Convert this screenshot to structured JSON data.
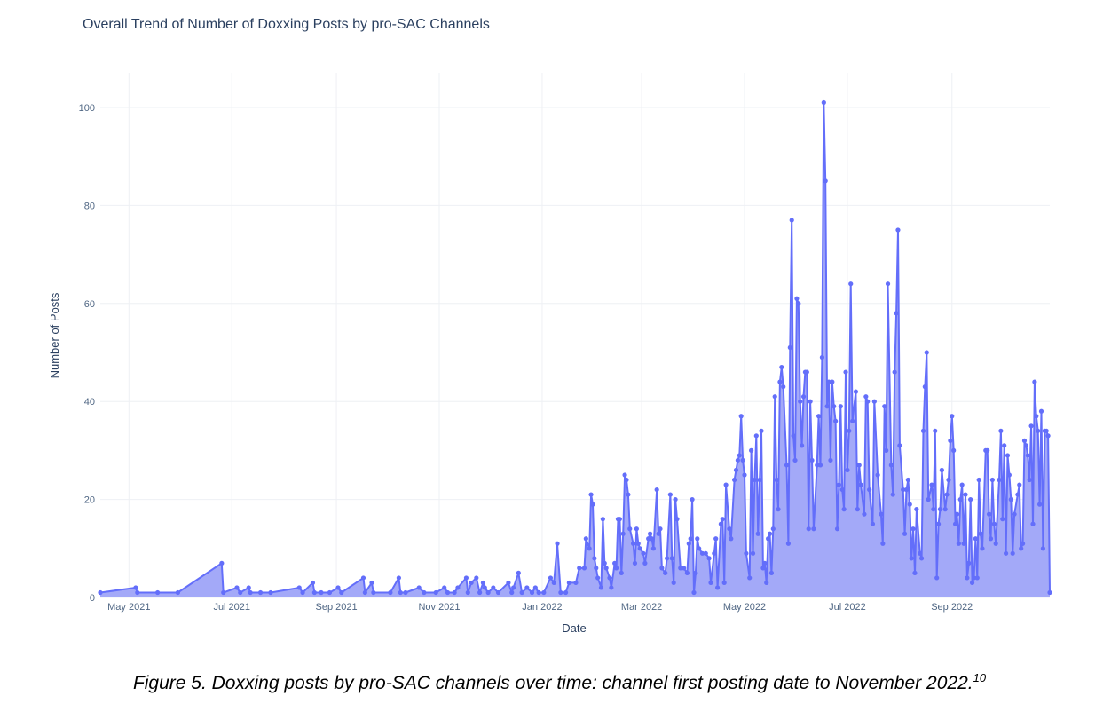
{
  "chart_data": {
    "type": "area",
    "title": "Overall Trend of Number of Doxxing Posts by pro-SAC Channels",
    "xlabel": "Date",
    "ylabel": "Number of Posts",
    "xlim": [
      "2021-04-14",
      "2022-10-29"
    ],
    "ylim": [
      0,
      105
    ],
    "y_ticks": [
      "0",
      "20",
      "40",
      "60",
      "80",
      "100"
    ],
    "x_ticks": [
      {
        "date": "2021-05-01",
        "label": "May 2021"
      },
      {
        "date": "2021-07-01",
        "label": "Jul 2021"
      },
      {
        "date": "2021-09-01",
        "label": "Sep 2021"
      },
      {
        "date": "2021-11-01",
        "label": "Nov 2021"
      },
      {
        "date": "2022-01-01",
        "label": "Jan 2022"
      },
      {
        "date": "2022-03-01",
        "label": "Mar 2022"
      },
      {
        "date": "2022-05-01",
        "label": "May 2022"
      },
      {
        "date": "2022-07-01",
        "label": "Jul 2022"
      },
      {
        "date": "2022-09-01",
        "label": "Sep 2022"
      }
    ],
    "grid": true,
    "markers": true,
    "color": "#636efa",
    "fill_color": "#a3a9f8",
    "points": [
      [
        "2021-04-14",
        1
      ],
      [
        "2021-05-05",
        2
      ],
      [
        "2021-05-06",
        1
      ],
      [
        "2021-05-18",
        1
      ],
      [
        "2021-05-30",
        1
      ],
      [
        "2021-06-25",
        7
      ],
      [
        "2021-06-26",
        1
      ],
      [
        "2021-07-04",
        2
      ],
      [
        "2021-07-06",
        1
      ],
      [
        "2021-07-11",
        2
      ],
      [
        "2021-07-12",
        1
      ],
      [
        "2021-07-18",
        1
      ],
      [
        "2021-07-24",
        1
      ],
      [
        "2021-08-10",
        2
      ],
      [
        "2021-08-12",
        1
      ],
      [
        "2021-08-18",
        3
      ],
      [
        "2021-08-19",
        1
      ],
      [
        "2021-08-23",
        1
      ],
      [
        "2021-08-28",
        1
      ],
      [
        "2021-09-02",
        2
      ],
      [
        "2021-09-04",
        1
      ],
      [
        "2021-09-17",
        4
      ],
      [
        "2021-09-18",
        1
      ],
      [
        "2021-09-22",
        3
      ],
      [
        "2021-09-23",
        1
      ],
      [
        "2021-10-03",
        1
      ],
      [
        "2021-10-08",
        4
      ],
      [
        "2021-10-09",
        1
      ],
      [
        "2021-10-12",
        1
      ],
      [
        "2021-10-20",
        2
      ],
      [
        "2021-10-23",
        1
      ],
      [
        "2021-10-30",
        1
      ],
      [
        "2021-11-04",
        2
      ],
      [
        "2021-11-06",
        1
      ],
      [
        "2021-11-10",
        1
      ],
      [
        "2021-11-12",
        2
      ],
      [
        "2021-11-17",
        4
      ],
      [
        "2021-11-18",
        1
      ],
      [
        "2021-11-20",
        3
      ],
      [
        "2021-11-23",
        4
      ],
      [
        "2021-11-25",
        1
      ],
      [
        "2021-11-27",
        3
      ],
      [
        "2021-11-28",
        2
      ],
      [
        "2021-11-30",
        1
      ],
      [
        "2021-12-03",
        2
      ],
      [
        "2021-12-06",
        1
      ],
      [
        "2021-12-12",
        3
      ],
      [
        "2021-12-14",
        1
      ],
      [
        "2021-12-15",
        2
      ],
      [
        "2021-12-18",
        5
      ],
      [
        "2021-12-20",
        1
      ],
      [
        "2021-12-23",
        2
      ],
      [
        "2021-12-26",
        1
      ],
      [
        "2021-12-28",
        2
      ],
      [
        "2021-12-30",
        1
      ],
      [
        "2022-01-02",
        1
      ],
      [
        "2022-01-06",
        4
      ],
      [
        "2022-01-08",
        3
      ],
      [
        "2022-01-10",
        11
      ],
      [
        "2022-01-12",
        1
      ],
      [
        "2022-01-15",
        1
      ],
      [
        "2022-01-17",
        3
      ],
      [
        "2022-01-21",
        3
      ],
      [
        "2022-01-23",
        6
      ],
      [
        "2022-01-26",
        6
      ],
      [
        "2022-01-27",
        12
      ],
      [
        "2022-01-29",
        10
      ],
      [
        "2022-01-30",
        21
      ],
      [
        "2022-01-31",
        19
      ],
      [
        "2022-02-01",
        8
      ],
      [
        "2022-02-02",
        6
      ],
      [
        "2022-02-03",
        4
      ],
      [
        "2022-02-05",
        2
      ],
      [
        "2022-02-06",
        16
      ],
      [
        "2022-02-07",
        7
      ],
      [
        "2022-02-08",
        6
      ],
      [
        "2022-02-10",
        4
      ],
      [
        "2022-02-11",
        2
      ],
      [
        "2022-02-13",
        7
      ],
      [
        "2022-02-14",
        6
      ],
      [
        "2022-02-15",
        16
      ],
      [
        "2022-02-16",
        16
      ],
      [
        "2022-02-17",
        5
      ],
      [
        "2022-02-18",
        13
      ],
      [
        "2022-02-19",
        25
      ],
      [
        "2022-02-20",
        24
      ],
      [
        "2022-02-21",
        21
      ],
      [
        "2022-02-22",
        14
      ],
      [
        "2022-02-24",
        11
      ],
      [
        "2022-02-25",
        7
      ],
      [
        "2022-02-26",
        14
      ],
      [
        "2022-02-27",
        11
      ],
      [
        "2022-02-28",
        10
      ],
      [
        "2022-03-02",
        9
      ],
      [
        "2022-03-03",
        7
      ],
      [
        "2022-03-05",
        12
      ],
      [
        "2022-03-06",
        13
      ],
      [
        "2022-03-07",
        12
      ],
      [
        "2022-03-08",
        10
      ],
      [
        "2022-03-10",
        22
      ],
      [
        "2022-03-11",
        13
      ],
      [
        "2022-03-12",
        14
      ],
      [
        "2022-03-13",
        6
      ],
      [
        "2022-03-15",
        5
      ],
      [
        "2022-03-16",
        8
      ],
      [
        "2022-03-18",
        21
      ],
      [
        "2022-03-19",
        8
      ],
      [
        "2022-03-20",
        3
      ],
      [
        "2022-03-21",
        20
      ],
      [
        "2022-03-22",
        16
      ],
      [
        "2022-03-24",
        6
      ],
      [
        "2022-03-26",
        6
      ],
      [
        "2022-03-28",
        5
      ],
      [
        "2022-03-29",
        11
      ],
      [
        "2022-03-30",
        12
      ],
      [
        "2022-03-31",
        20
      ],
      [
        "2022-04-01",
        1
      ],
      [
        "2022-04-02",
        5
      ],
      [
        "2022-04-03",
        12
      ],
      [
        "2022-04-04",
        10
      ],
      [
        "2022-04-06",
        9
      ],
      [
        "2022-04-08",
        9
      ],
      [
        "2022-04-10",
        8
      ],
      [
        "2022-04-11",
        3
      ],
      [
        "2022-04-13",
        9
      ],
      [
        "2022-04-14",
        12
      ],
      [
        "2022-04-15",
        2
      ],
      [
        "2022-04-17",
        15
      ],
      [
        "2022-04-18",
        16
      ],
      [
        "2022-04-19",
        3
      ],
      [
        "2022-04-20",
        23
      ],
      [
        "2022-04-22",
        14
      ],
      [
        "2022-04-23",
        12
      ],
      [
        "2022-04-25",
        24
      ],
      [
        "2022-04-26",
        26
      ],
      [
        "2022-04-27",
        28
      ],
      [
        "2022-04-28",
        29
      ],
      [
        "2022-04-29",
        37
      ],
      [
        "2022-04-30",
        28
      ],
      [
        "2022-05-01",
        25
      ],
      [
        "2022-05-02",
        9
      ],
      [
        "2022-05-04",
        4
      ],
      [
        "2022-05-05",
        30
      ],
      [
        "2022-05-06",
        9
      ],
      [
        "2022-05-07",
        24
      ],
      [
        "2022-05-08",
        33
      ],
      [
        "2022-05-09",
        13
      ],
      [
        "2022-05-10",
        24
      ],
      [
        "2022-05-11",
        34
      ],
      [
        "2022-05-12",
        6
      ],
      [
        "2022-05-13",
        7
      ],
      [
        "2022-05-14",
        3
      ],
      [
        "2022-05-15",
        12
      ],
      [
        "2022-05-16",
        13
      ],
      [
        "2022-05-17",
        5
      ],
      [
        "2022-05-18",
        14
      ],
      [
        "2022-05-19",
        41
      ],
      [
        "2022-05-20",
        24
      ],
      [
        "2022-05-21",
        18
      ],
      [
        "2022-05-22",
        44
      ],
      [
        "2022-05-23",
        47
      ],
      [
        "2022-05-24",
        43
      ],
      [
        "2022-05-26",
        27
      ],
      [
        "2022-05-27",
        11
      ],
      [
        "2022-05-28",
        51
      ],
      [
        "2022-05-29",
        77
      ],
      [
        "2022-05-30",
        33
      ],
      [
        "2022-05-31",
        28
      ],
      [
        "2022-06-01",
        61
      ],
      [
        "2022-06-02",
        60
      ],
      [
        "2022-06-03",
        40
      ],
      [
        "2022-06-04",
        31
      ],
      [
        "2022-06-05",
        41
      ],
      [
        "2022-06-06",
        46
      ],
      [
        "2022-06-07",
        46
      ],
      [
        "2022-06-08",
        14
      ],
      [
        "2022-06-09",
        40
      ],
      [
        "2022-06-10",
        28
      ],
      [
        "2022-06-11",
        14
      ],
      [
        "2022-06-13",
        27
      ],
      [
        "2022-06-14",
        37
      ],
      [
        "2022-06-15",
        27
      ],
      [
        "2022-06-16",
        49
      ],
      [
        "2022-06-17",
        101
      ],
      [
        "2022-06-18",
        85
      ],
      [
        "2022-06-19",
        39
      ],
      [
        "2022-06-20",
        44
      ],
      [
        "2022-06-21",
        28
      ],
      [
        "2022-06-22",
        44
      ],
      [
        "2022-06-23",
        39
      ],
      [
        "2022-06-24",
        36
      ],
      [
        "2022-06-25",
        14
      ],
      [
        "2022-06-26",
        23
      ],
      [
        "2022-06-27",
        39
      ],
      [
        "2022-06-28",
        22
      ],
      [
        "2022-06-29",
        18
      ],
      [
        "2022-06-30",
        46
      ],
      [
        "2022-07-01",
        26
      ],
      [
        "2022-07-02",
        34
      ],
      [
        "2022-07-03",
        64
      ],
      [
        "2022-07-04",
        36
      ],
      [
        "2022-07-06",
        42
      ],
      [
        "2022-07-07",
        18
      ],
      [
        "2022-07-08",
        27
      ],
      [
        "2022-07-09",
        23
      ],
      [
        "2022-07-11",
        17
      ],
      [
        "2022-07-12",
        41
      ],
      [
        "2022-07-13",
        40
      ],
      [
        "2022-07-14",
        22
      ],
      [
        "2022-07-16",
        15
      ],
      [
        "2022-07-17",
        40
      ],
      [
        "2022-07-19",
        25
      ],
      [
        "2022-07-21",
        17
      ],
      [
        "2022-07-22",
        11
      ],
      [
        "2022-07-23",
        39
      ],
      [
        "2022-07-24",
        30
      ],
      [
        "2022-07-25",
        64
      ],
      [
        "2022-07-27",
        27
      ],
      [
        "2022-07-28",
        21
      ],
      [
        "2022-07-29",
        46
      ],
      [
        "2022-07-30",
        58
      ],
      [
        "2022-07-31",
        75
      ],
      [
        "2022-08-01",
        31
      ],
      [
        "2022-08-03",
        22
      ],
      [
        "2022-08-04",
        13
      ],
      [
        "2022-08-05",
        22
      ],
      [
        "2022-08-06",
        24
      ],
      [
        "2022-08-07",
        19
      ],
      [
        "2022-08-08",
        8
      ],
      [
        "2022-08-09",
        14
      ],
      [
        "2022-08-10",
        5
      ],
      [
        "2022-08-11",
        18
      ],
      [
        "2022-08-13",
        9
      ],
      [
        "2022-08-14",
        8
      ],
      [
        "2022-08-15",
        34
      ],
      [
        "2022-08-16",
        43
      ],
      [
        "2022-08-17",
        50
      ],
      [
        "2022-08-18",
        20
      ],
      [
        "2022-08-20",
        23
      ],
      [
        "2022-08-21",
        18
      ],
      [
        "2022-08-22",
        34
      ],
      [
        "2022-08-23",
        4
      ],
      [
        "2022-08-24",
        15
      ],
      [
        "2022-08-25",
        18
      ],
      [
        "2022-08-26",
        26
      ],
      [
        "2022-08-28",
        18
      ],
      [
        "2022-08-29",
        21
      ],
      [
        "2022-08-30",
        24
      ],
      [
        "2022-08-31",
        32
      ],
      [
        "2022-09-01",
        37
      ],
      [
        "2022-09-02",
        30
      ],
      [
        "2022-09-03",
        15
      ],
      [
        "2022-09-04",
        17
      ],
      [
        "2022-09-05",
        11
      ],
      [
        "2022-09-06",
        20
      ],
      [
        "2022-09-07",
        23
      ],
      [
        "2022-09-08",
        11
      ],
      [
        "2022-09-09",
        21
      ],
      [
        "2022-09-10",
        4
      ],
      [
        "2022-09-11",
        7
      ],
      [
        "2022-09-12",
        20
      ],
      [
        "2022-09-13",
        3
      ],
      [
        "2022-09-14",
        4
      ],
      [
        "2022-09-15",
        12
      ],
      [
        "2022-09-16",
        4
      ],
      [
        "2022-09-17",
        24
      ],
      [
        "2022-09-18",
        13
      ],
      [
        "2022-09-19",
        10
      ],
      [
        "2022-09-21",
        30
      ],
      [
        "2022-09-22",
        30
      ],
      [
        "2022-09-23",
        17
      ],
      [
        "2022-09-24",
        12
      ],
      [
        "2022-09-25",
        24
      ],
      [
        "2022-09-26",
        15
      ],
      [
        "2022-09-27",
        11
      ],
      [
        "2022-09-29",
        24
      ],
      [
        "2022-09-30",
        34
      ],
      [
        "2022-10-01",
        16
      ],
      [
        "2022-10-02",
        31
      ],
      [
        "2022-10-03",
        9
      ],
      [
        "2022-10-04",
        29
      ],
      [
        "2022-10-05",
        25
      ],
      [
        "2022-10-06",
        20
      ],
      [
        "2022-10-07",
        9
      ],
      [
        "2022-10-08",
        17
      ],
      [
        "2022-10-10",
        21
      ],
      [
        "2022-10-11",
        23
      ],
      [
        "2022-10-12",
        10
      ],
      [
        "2022-10-13",
        11
      ],
      [
        "2022-10-14",
        32
      ],
      [
        "2022-10-15",
        31
      ],
      [
        "2022-10-16",
        29
      ],
      [
        "2022-10-17",
        24
      ],
      [
        "2022-10-18",
        35
      ],
      [
        "2022-10-19",
        15
      ],
      [
        "2022-10-20",
        44
      ],
      [
        "2022-10-21",
        37
      ],
      [
        "2022-10-22",
        34
      ],
      [
        "2022-10-23",
        19
      ],
      [
        "2022-10-24",
        38
      ],
      [
        "2022-10-25",
        10
      ],
      [
        "2022-10-26",
        34
      ],
      [
        "2022-10-27",
        34
      ],
      [
        "2022-10-28",
        33
      ],
      [
        "2022-10-29",
        1
      ]
    ]
  },
  "caption": {
    "text": "Figure 5. Doxxing posts by pro-SAC channels over time: channel first posting date to November 2022.",
    "footnote": "10"
  }
}
